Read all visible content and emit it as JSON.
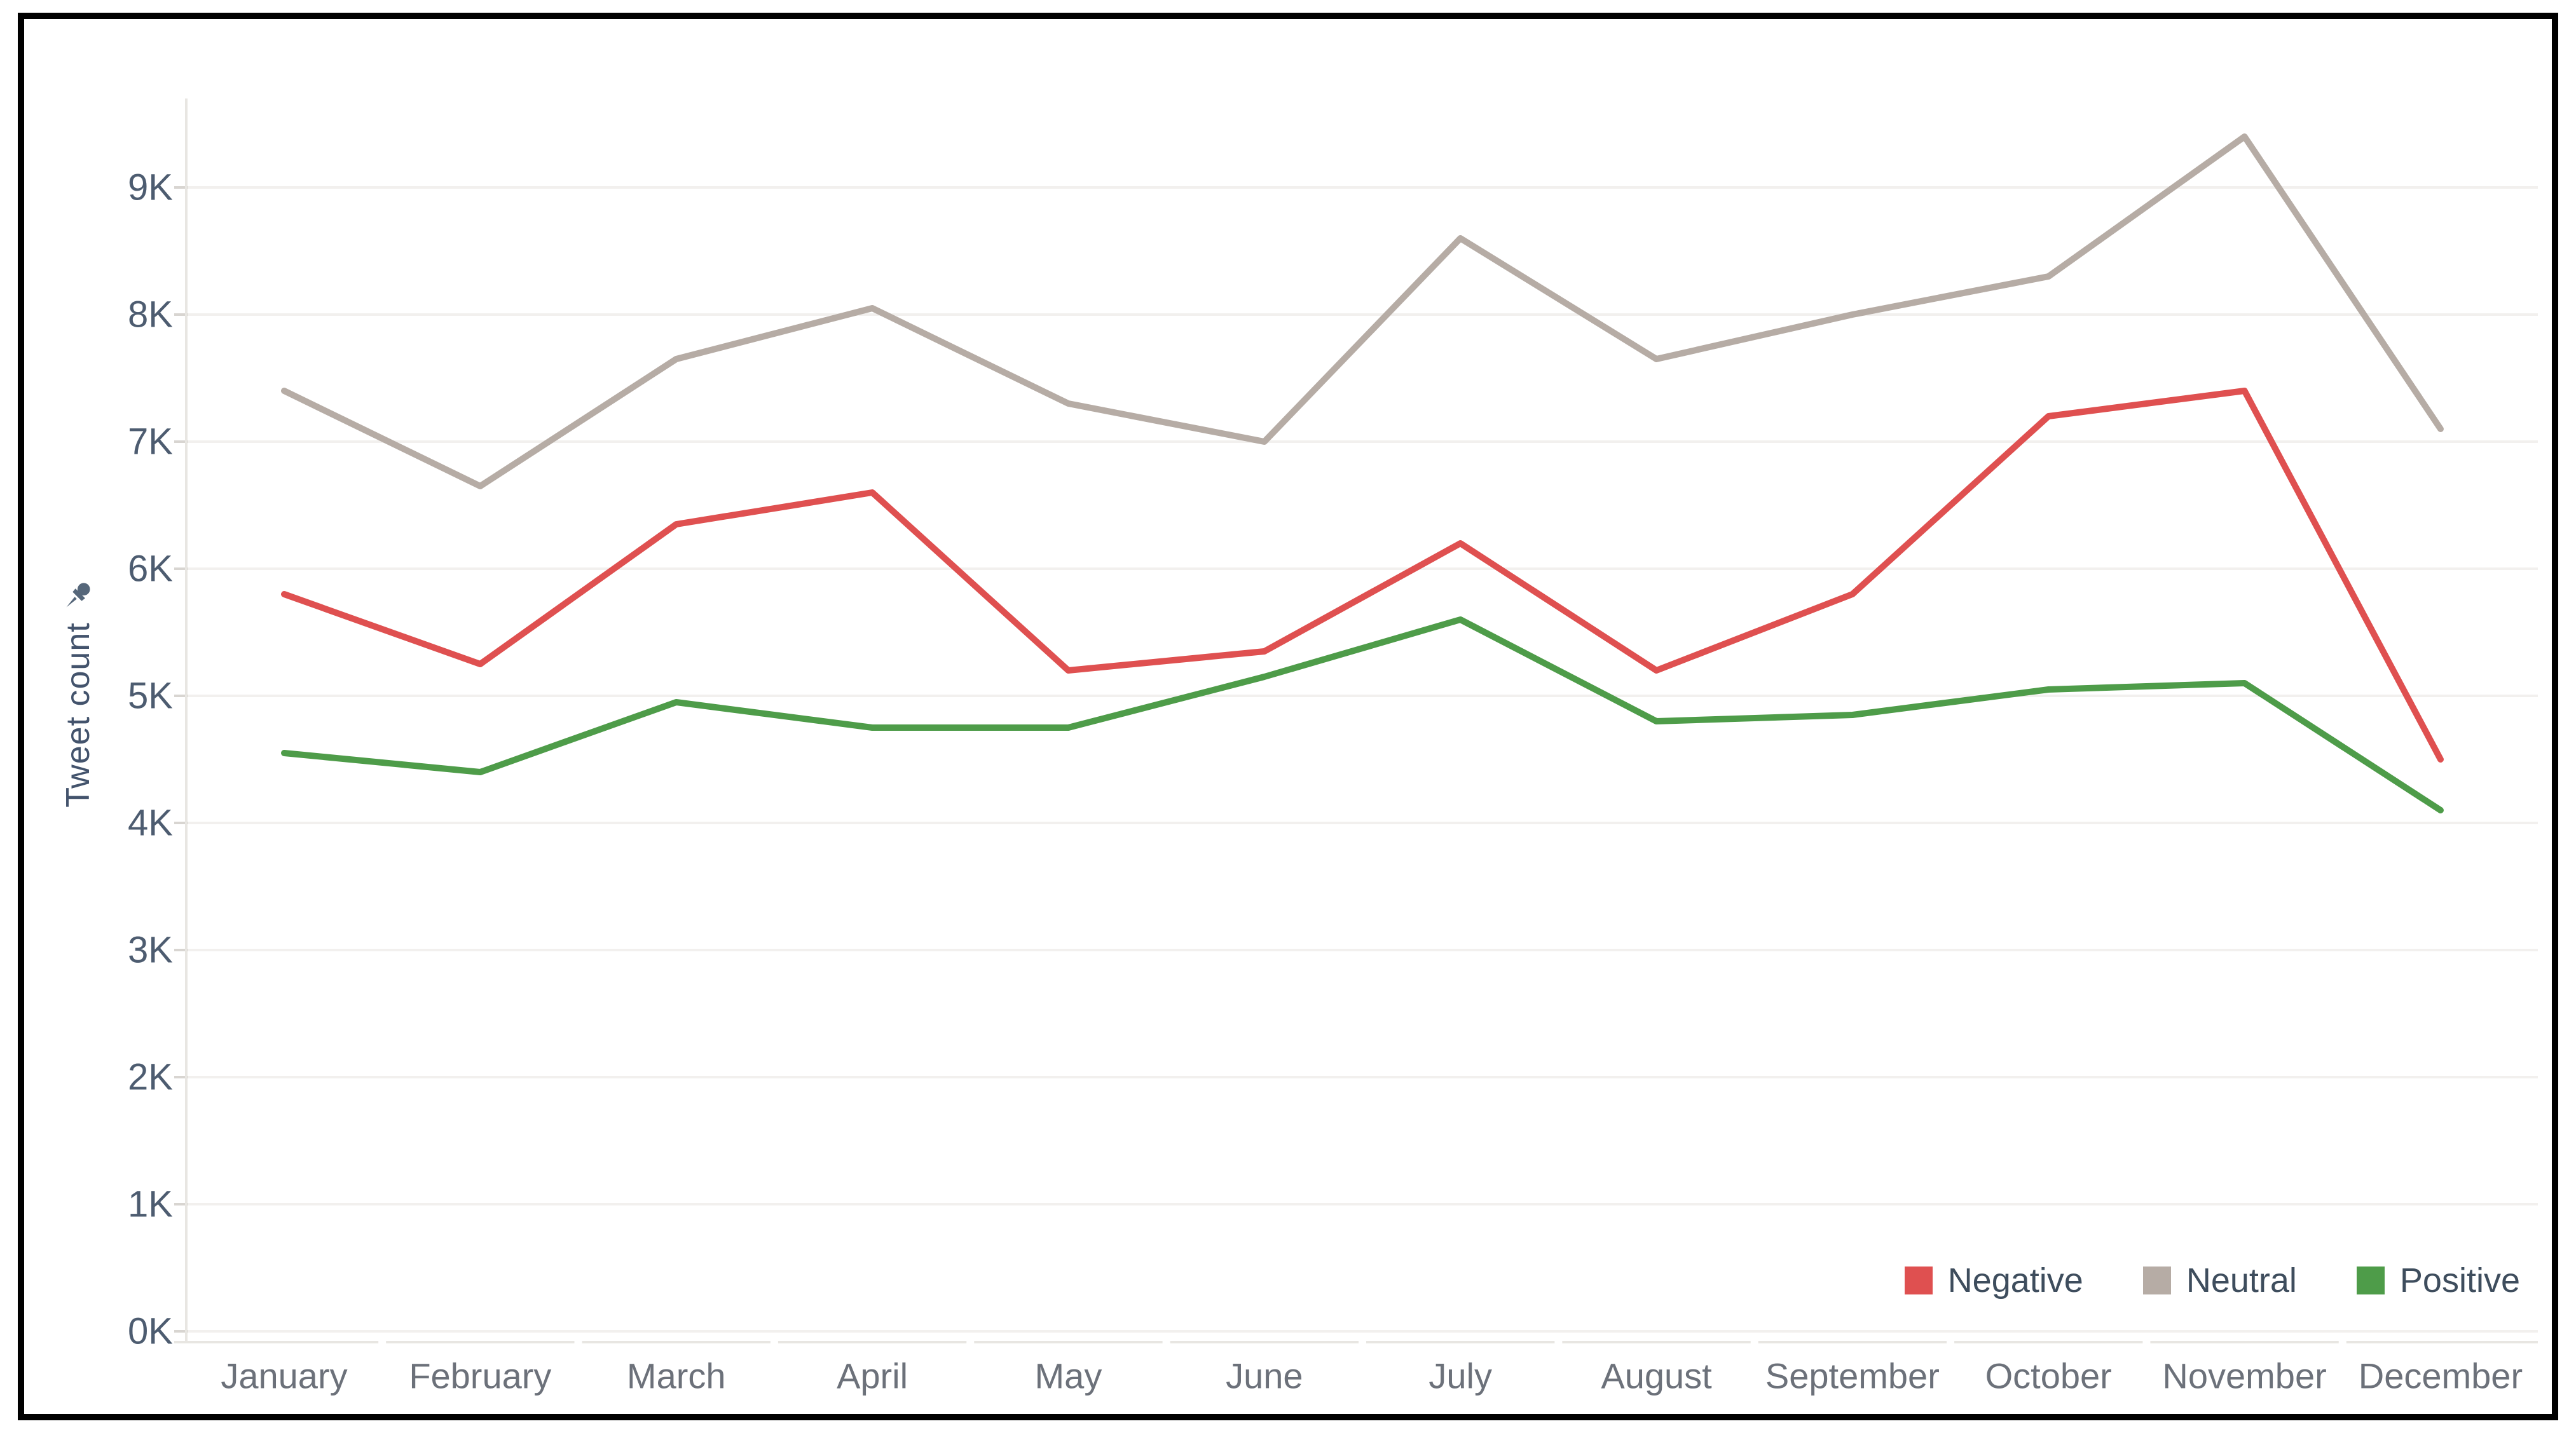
{
  "chart_data": {
    "type": "line",
    "title": "",
    "categories": [
      "January",
      "February",
      "March",
      "April",
      "May",
      "June",
      "July",
      "August",
      "September",
      "October",
      "November",
      "December"
    ],
    "series": [
      {
        "name": "Negative",
        "color": "#df5050",
        "values": [
          5800,
          5250,
          6350,
          6600,
          5200,
          5350,
          6200,
          5200,
          5800,
          7200,
          7400,
          4500
        ]
      },
      {
        "name": "Neutral",
        "color": "#b6aca5",
        "values": [
          7400,
          6650,
          7650,
          8050,
          7300,
          7000,
          8600,
          7650,
          8000,
          8300,
          9400,
          7100
        ]
      },
      {
        "name": "Positive",
        "color": "#4e9c49",
        "values": [
          4550,
          4400,
          4950,
          4750,
          4750,
          5150,
          5600,
          4800,
          4850,
          5050,
          5100,
          4100
        ]
      }
    ],
    "xlabel": "",
    "ylabel": "Tweet count",
    "ylabel_icon": "pushpin-icon",
    "ytick_labels": [
      "0K",
      "1K",
      "2K",
      "3K",
      "4K",
      "5K",
      "6K",
      "7K",
      "8K",
      "9K"
    ],
    "ylim": [
      0,
      9700
    ],
    "grid": true,
    "legend_position": "bottom-right",
    "legend": [
      "Negative",
      "Neutral",
      "Positive"
    ]
  }
}
